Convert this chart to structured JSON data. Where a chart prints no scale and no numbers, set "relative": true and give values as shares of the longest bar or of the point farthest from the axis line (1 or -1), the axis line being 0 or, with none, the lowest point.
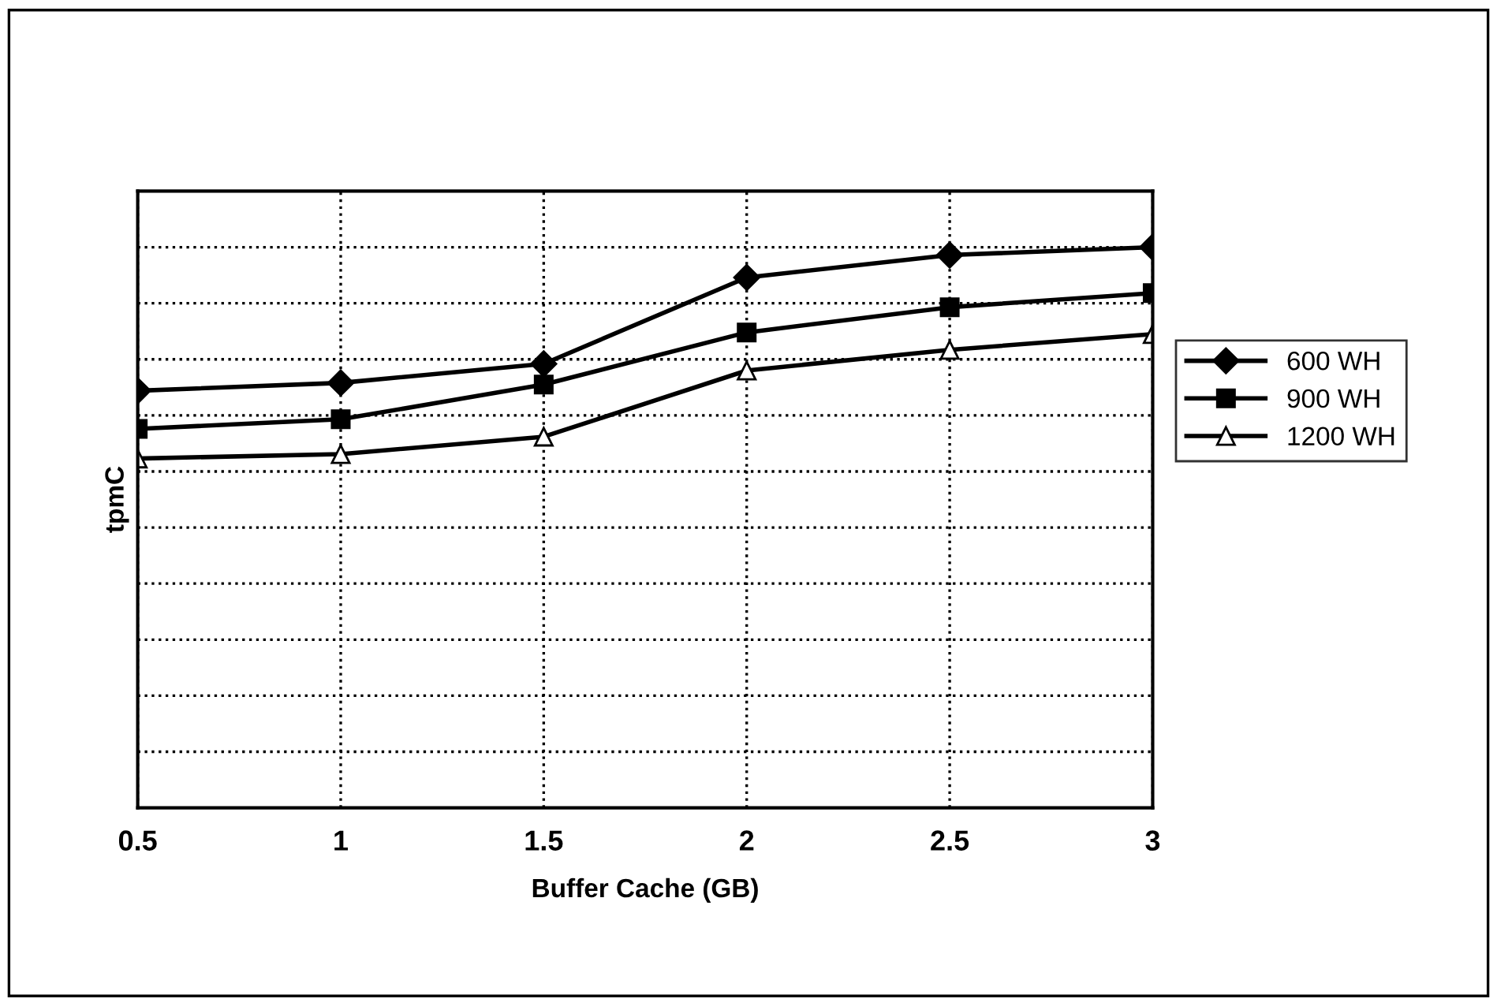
{
  "chart_data": {
    "type": "line",
    "relative": true,
    "xlabel": "Buffer Cache (GB)",
    "ylabel": "tpmC",
    "x": [
      0.5,
      1,
      1.5,
      2,
      2.5,
      3
    ],
    "xlim": [
      0.5,
      3
    ],
    "xticks": [
      0.5,
      1,
      1.5,
      2,
      2.5,
      3
    ],
    "series": [
      {
        "name": "600 WH",
        "color": "#000000",
        "marker": "diamond",
        "values": [
          0.744,
          0.758,
          0.792,
          0.946,
          0.986,
          1
        ]
      },
      {
        "name": "900 WH",
        "color": "#000000",
        "marker": "square",
        "values": [
          0.676,
          0.693,
          0.755,
          0.848,
          0.893,
          0.918
        ]
      },
      {
        "name": "1200 WH",
        "color": "#000000",
        "marker": "triangle",
        "values": [
          0.623,
          0.631,
          0.662,
          0.78,
          0.817,
          0.845
        ]
      }
    ],
    "grid": true,
    "legend": "right",
    "line_style": "solid"
  }
}
